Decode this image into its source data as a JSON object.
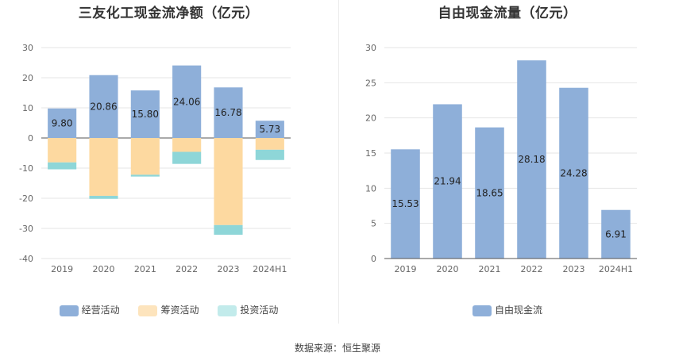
{
  "colors": {
    "operating": "#8eafd9",
    "financing": "#fdd9a0",
    "investing": "#8ed6d8",
    "fcf": "#8eafd9"
  },
  "source": "数据来源：恒生聚源",
  "chart_data": [
    {
      "type": "bar",
      "stacked": true,
      "title": "三友化工现金流净额（亿元）",
      "categories": [
        "2019",
        "2020",
        "2021",
        "2022",
        "2023",
        "2024H1"
      ],
      "ylim": [
        -40,
        30
      ],
      "yticks": [
        30,
        20,
        10,
        0,
        -10,
        -20,
        -30,
        -40
      ],
      "grid": true,
      "legend_position": "bottom",
      "series": [
        {
          "name": "经营活动",
          "color_key": "operating",
          "values": [
            9.8,
            20.86,
            15.8,
            24.06,
            16.78,
            5.73
          ],
          "show_labels": true
        },
        {
          "name": "筹资活动",
          "color_key": "financing",
          "values": [
            -8.1,
            -19.2,
            -12.2,
            -4.6,
            -28.9,
            -3.9
          ],
          "show_labels": false
        },
        {
          "name": "投资活动",
          "color_key": "investing",
          "values": [
            -2.3,
            -1.0,
            -0.6,
            -4.0,
            -3.2,
            -3.4
          ],
          "show_labels": false
        }
      ]
    },
    {
      "type": "bar",
      "title": "自由现金流量（亿元）",
      "categories": [
        "2019",
        "2020",
        "2021",
        "2022",
        "2023",
        "2024H1"
      ],
      "ylim": [
        0,
        30
      ],
      "yticks": [
        30,
        25,
        20,
        15,
        10,
        5,
        0
      ],
      "grid": true,
      "legend_position": "bottom",
      "series": [
        {
          "name": "自由现金流",
          "color_key": "fcf",
          "values": [
            15.53,
            21.94,
            18.65,
            28.18,
            24.28,
            6.91
          ],
          "show_labels": true
        }
      ]
    }
  ]
}
